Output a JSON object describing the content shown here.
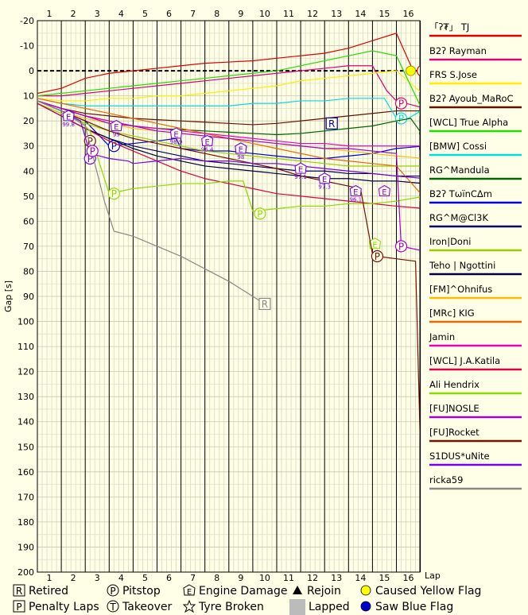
{
  "chart_data": {
    "type": "line",
    "title": "",
    "xlabel": "Lap",
    "ylabel": "Gap [s]",
    "x_ticks": [
      1,
      2,
      3,
      4,
      5,
      6,
      7,
      8,
      9,
      10,
      11,
      12,
      13,
      14,
      15,
      16
    ],
    "ylim": [
      -20,
      200
    ],
    "y_ticks": [
      -20,
      -10,
      0,
      10,
      20,
      30,
      40,
      50,
      60,
      70,
      80,
      90,
      100,
      110,
      120,
      130,
      140,
      150,
      160,
      170,
      180,
      190,
      200
    ],
    "series": [
      {
        "name": "「ʔ₮」 TJ",
        "color": "#dd0000",
        "x": [
          0,
          1,
          2,
          3,
          4,
          5,
          6,
          7,
          8,
          9,
          10,
          11,
          12,
          13,
          14,
          15,
          15.7
        ],
        "y": [
          9,
          7,
          3,
          1,
          0,
          -1,
          -2,
          -3,
          -3.5,
          -4,
          -5,
          -6,
          -7,
          -9,
          -12,
          -15,
          0
        ],
        "markers": [
          {
            "type": "P",
            "x": 16.1,
            "y": 0
          }
        ]
      },
      {
        "name": "B2ʔ Rayman",
        "color": "#e0007a",
        "x": [
          0,
          1,
          2,
          3,
          4,
          5,
          6,
          7,
          8,
          9,
          10,
          11,
          12,
          13,
          14,
          14.6,
          15,
          16.2
        ],
        "y": [
          10,
          10,
          9,
          8,
          7,
          6,
          5,
          4,
          3,
          2,
          1,
          0,
          -1,
          -2,
          -2,
          8,
          12,
          15
        ],
        "markers": [
          {
            "type": "P",
            "x": 15.2,
            "y": 13
          }
        ]
      },
      {
        "name": "FRS S.Jose",
        "color": "#ffee00",
        "x": [
          0,
          1,
          2,
          3,
          4,
          5,
          6,
          7,
          8,
          9,
          10,
          11,
          12,
          13,
          14,
          15,
          16.2
        ],
        "y": [
          11,
          12,
          12,
          11,
          11,
          10,
          10,
          9,
          8,
          7,
          6,
          4,
          3,
          2,
          1,
          0,
          10
        ],
        "markers": [
          {
            "type": "Y",
            "x": 15.6,
            "y": 0
          }
        ]
      },
      {
        "name": "B2ʔ Ayoub_MaRoC",
        "color": "#661100",
        "x": [
          0,
          1,
          2,
          3,
          4,
          5,
          6,
          7,
          8,
          9,
          10,
          11,
          12,
          13,
          14,
          15,
          16.2
        ],
        "y": [
          12,
          15,
          17,
          18,
          19,
          19.5,
          20,
          20.5,
          21,
          21.5,
          21,
          20,
          19,
          18,
          17,
          16,
          16
        ]
      },
      {
        "name": "[WCL] True Alpha",
        "color": "#22dd00",
        "x": [
          0,
          1,
          2,
          3,
          4,
          5,
          6,
          7,
          8,
          9,
          10,
          11,
          12,
          13,
          14,
          15,
          16.2
        ],
        "y": [
          10,
          9,
          8,
          7,
          6,
          5,
          4,
          3,
          2,
          1,
          0,
          -2,
          -4,
          -6,
          -8,
          -6,
          18
        ],
        "markers": [
          {
            "type": "P",
            "x": 16.2,
            "y": 17
          }
        ]
      },
      {
        "name": "[BMW] Cossi",
        "color": "#00dddd",
        "x": [
          0,
          1,
          2,
          3,
          4,
          5,
          6,
          7,
          8,
          9,
          10,
          11,
          12,
          13,
          14,
          14.5,
          15,
          15.5,
          16.2
        ],
        "y": [
          11,
          13,
          14,
          14,
          14,
          14,
          14,
          14,
          14,
          13,
          13,
          12,
          12,
          11,
          11,
          11,
          19,
          19,
          15
        ],
        "markers": [
          {
            "type": "P",
            "x": 15.2,
            "y": 19
          }
        ]
      },
      {
        "name": "RG^Mandula",
        "color": "#006600",
        "x": [
          0,
          1,
          2,
          3,
          4,
          5,
          6,
          7,
          8,
          9,
          10,
          11,
          12,
          13,
          14,
          15,
          15.6,
          16.2
        ],
        "y": [
          12,
          15,
          18,
          20,
          22,
          23,
          23.5,
          24,
          24.5,
          25,
          25.5,
          25,
          24,
          23,
          22,
          20,
          19,
          27
        ],
        "markers": [
          {
            "type": "P",
            "x": 16.2,
            "y": 25
          }
        ]
      },
      {
        "name": "B2ʔ TωïnCΔm",
        "color": "#0000dd",
        "x": [
          0,
          1,
          2,
          2.8,
          3,
          4,
          5,
          5.8,
          6,
          7,
          8,
          9,
          10,
          11,
          12,
          13,
          14,
          15,
          16.2
        ],
        "y": [
          12,
          16,
          20,
          28,
          30,
          29,
          28,
          27,
          31,
          32,
          32,
          33,
          34,
          35,
          35,
          34,
          33,
          31,
          30
        ],
        "markers": [
          {
            "type": "P",
            "x": 3.2,
            "y": 30
          },
          {
            "type": "P",
            "x": 16.2,
            "y": 31
          }
        ]
      },
      {
        "name": "RG^M@Cl3K",
        "color": "#000066",
        "x": [
          0,
          1,
          2,
          3,
          4,
          5,
          6,
          7,
          8,
          9,
          10,
          11,
          12,
          13,
          14,
          15,
          16.2
        ],
        "y": [
          13,
          18,
          23,
          27,
          30,
          32,
          34,
          36,
          37,
          38,
          39,
          40,
          40,
          41,
          41,
          42,
          42
        ]
      },
      {
        "name": "Iron|Doni",
        "color": "#99cc00",
        "x": [
          0,
          1,
          2,
          3,
          4,
          5,
          6,
          7,
          8,
          9,
          10,
          11,
          12,
          13,
          14,
          15,
          16.2
        ],
        "y": [
          13,
          17,
          21,
          24,
          26,
          28,
          30,
          32,
          33,
          34,
          35,
          36,
          37,
          38,
          38,
          38,
          38
        ]
      },
      {
        "name": "Teho | Ngottini",
        "color": "#000044",
        "x": [
          0,
          1,
          2,
          3,
          4,
          5,
          6,
          7,
          8,
          9,
          10,
          11,
          12,
          13,
          14,
          15,
          16.2
        ],
        "y": [
          13,
          18,
          23,
          27,
          31,
          34,
          36,
          38,
          39,
          40,
          41,
          42,
          43,
          43,
          44,
          44,
          45
        ]
      },
      {
        "name": "[FM]^Ohnifus",
        "color": "#ffbb00",
        "x": [
          0,
          1,
          2,
          3,
          4,
          5,
          6,
          7,
          8,
          9,
          10,
          11,
          12,
          13,
          14,
          15,
          16.2
        ],
        "y": [
          12,
          16,
          19,
          21,
          23,
          24,
          25,
          26,
          27,
          28,
          29,
          30,
          31,
          32,
          33,
          34,
          35
        ]
      },
      {
        "name": "[MRc] KIG",
        "color": "#ee6600",
        "x": [
          0,
          1,
          2,
          3,
          4,
          5,
          6,
          7,
          8,
          9,
          10,
          11,
          12,
          13,
          14,
          15,
          16.2
        ],
        "y": [
          11,
          13,
          15,
          17,
          19,
          21,
          23,
          25,
          27,
          29,
          31,
          33,
          35,
          36,
          37,
          38,
          51
        ],
        "markers": [
          {
            "type": "P",
            "x": 16.2,
            "y": 51
          }
        ]
      },
      {
        "name": "Jamin",
        "color": "#ee00bb",
        "x": [
          0,
          1,
          2,
          3,
          4,
          5,
          6,
          7,
          8,
          9,
          10,
          11,
          12,
          13,
          14,
          15,
          16.2
        ],
        "y": [
          12,
          15,
          18,
          20,
          22,
          23,
          24,
          25,
          26,
          27,
          28,
          29,
          29,
          30,
          30,
          30,
          30
        ]
      },
      {
        "name": "[WCL] J.A.Katila",
        "color": "#dd0044",
        "x": [
          0,
          1,
          2,
          3,
          4,
          5,
          6,
          7,
          8,
          9,
          10,
          11,
          12,
          13,
          14,
          15,
          16.2
        ],
        "y": [
          13,
          18,
          23,
          28,
          32,
          36,
          40,
          43,
          45,
          47,
          49,
          50,
          51,
          52,
          53,
          54,
          55
        ]
      },
      {
        "name": "Ali Hendrix",
        "color": "#88dd00",
        "x": [
          0,
          1,
          1.8,
          2.2,
          2.5,
          3,
          3.5,
          4,
          5,
          6,
          7,
          8,
          8.6,
          9,
          10,
          11,
          12,
          13,
          14,
          15,
          16.2
        ],
        "y": [
          12,
          16,
          20,
          24,
          34,
          49,
          48,
          47,
          46,
          45,
          45,
          44,
          44,
          56,
          55,
          54,
          54,
          53,
          53,
          52,
          50
        ],
        "markers": [
          {
            "type": "P",
            "x": 3.2,
            "y": 49
          },
          {
            "type": "P",
            "x": 9.3,
            "y": 57
          },
          {
            "type": "E",
            "x": 14.1,
            "y": 69
          }
        ]
      },
      {
        "name": "[FU]NOSLE",
        "color": "#aa00cc",
        "x": [
          0,
          1,
          2,
          3,
          4,
          5,
          6,
          7,
          8,
          9,
          10,
          11,
          12,
          13,
          14,
          15,
          15.2,
          16.2
        ],
        "y": [
          12,
          15,
          18,
          21,
          22,
          24,
          25,
          26,
          27,
          28,
          29,
          30,
          31,
          31,
          32,
          33,
          70,
          72
        ],
        "markers": [
          {
            "type": "P",
            "x": 15.2,
            "y": 70
          },
          {
            "type": "E",
            "x": 14.5,
            "y": 48
          }
        ]
      },
      {
        "name": "[FU]Rocket",
        "color": "#771100",
        "x": [
          0,
          1,
          2,
          3,
          4,
          5,
          6,
          7,
          8,
          9,
          10,
          11,
          12,
          13,
          13.5,
          14,
          14.2,
          15,
          15.8,
          16,
          16.2
        ],
        "y": [
          12,
          16,
          20,
          24,
          27,
          29,
          31,
          33,
          35,
          37,
          39,
          42,
          44,
          46,
          47,
          73,
          74,
          75,
          76,
          150,
          195
        ],
        "markers": [
          {
            "type": "P",
            "x": 14.2,
            "y": 74
          },
          {
            "type": "P",
            "x": 2.2,
            "y": 28
          }
        ]
      },
      {
        "name": "S1DUS*uNite",
        "color": "#7700ee",
        "x": [
          0,
          1,
          1.8,
          2.2,
          3,
          3.8,
          4,
          5,
          6,
          7,
          8,
          9,
          10,
          11,
          12,
          13,
          14,
          15,
          16.2
        ],
        "y": [
          12,
          16,
          20,
          33,
          35,
          36,
          37,
          36,
          35,
          36,
          36,
          37,
          37,
          38,
          39,
          40,
          41,
          42,
          43
        ],
        "markers": [
          {
            "type": "P",
            "x": 2.2,
            "y": 35
          },
          {
            "type": "E",
            "x": 8.5,
            "y": 31
          }
        ]
      },
      {
        "name": "ricka59",
        "color": "#888888",
        "x": [
          0,
          1,
          2,
          2.8,
          3.2,
          4,
          5,
          6,
          7,
          8,
          8.5,
          9,
          9.5
        ],
        "y": [
          12,
          16,
          22,
          52,
          64,
          66,
          70,
          74,
          79,
          84,
          87,
          90,
          93
        ],
        "markers": [
          {
            "type": "R",
            "x": 9.5,
            "y": 93
          }
        ]
      }
    ],
    "extra_markers": [
      {
        "type": "R",
        "x": 12.3,
        "y": 21
      },
      {
        "type": "P",
        "x": 2.3,
        "y": 32
      },
      {
        "type": "E",
        "x": 1.3,
        "y": 18,
        "label": "99.8"
      },
      {
        "type": "E",
        "x": 3.3,
        "y": 22,
        "label": "99"
      },
      {
        "type": "E",
        "x": 5.8,
        "y": 25,
        "label": "98.9"
      },
      {
        "type": "E",
        "x": 7.1,
        "y": 28,
        "label": "96.4"
      },
      {
        "type": "E",
        "x": 8.5,
        "y": 31,
        "label": "98"
      },
      {
        "type": "E",
        "x": 11.0,
        "y": 39,
        "label": "97.1"
      },
      {
        "type": "E",
        "x": 12.0,
        "y": 43,
        "label": "97.3"
      },
      {
        "type": "E",
        "x": 13.3,
        "y": 48,
        "label": "96.1"
      }
    ],
    "legend_position": "right",
    "key": [
      {
        "symbol": "R",
        "label": "Retired"
      },
      {
        "symbol": "P",
        "label": "Pitstop"
      },
      {
        "symbol": "E",
        "label": "Engine Damage"
      },
      {
        "symbol": "tri",
        "label": "Rejoin"
      },
      {
        "symbol": "Y",
        "label": "Caused Yellow Flag"
      },
      {
        "symbol": "P",
        "label": "Penalty Laps"
      },
      {
        "symbol": "T",
        "label": "Takeover"
      },
      {
        "symbol": "star",
        "label": "Tyre Broken"
      },
      {
        "symbol": "gray",
        "label": "Lapped"
      },
      {
        "symbol": "B",
        "label": "Saw Blue Flag"
      }
    ]
  }
}
